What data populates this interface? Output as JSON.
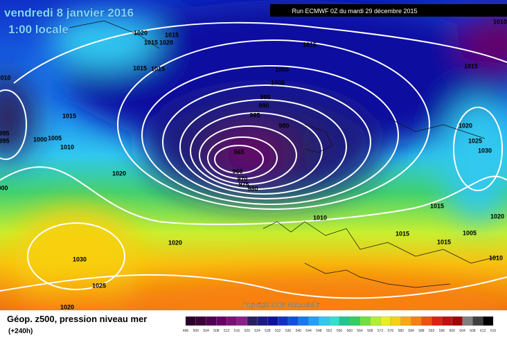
{
  "header": {
    "date": "vendredi 8 janvier 2016",
    "time": "1:00 locale",
    "run": "Run ECMWF 0Z du mardi 29 décembre 2015",
    "copyright": "Copyright 2015 Meteociel.fr"
  },
  "footer": {
    "title": "Géop. z500, pression niveau mer",
    "lead": "(+240h)"
  },
  "isobars": [
    "1020",
    "1015",
    "1015",
    "1020",
    "1015",
    "1015",
    "1015",
    "1010",
    "1015",
    "1005",
    "1000",
    "995",
    "990",
    "985",
    "980",
    "965",
    "960",
    "970",
    "975",
    "980",
    "010",
    "1015",
    "1005",
    "1010",
    "1000",
    "995",
    "995",
    "000",
    "1020",
    "1020",
    "1030",
    "1025",
    "1020",
    "1010",
    "1015",
    "1015",
    "1015",
    "1005",
    "1010",
    "1020",
    "1025",
    "1030",
    "1020"
  ],
  "legend": {
    "values": [
      496,
      500,
      504,
      508,
      512,
      516,
      520,
      524,
      528,
      532,
      536,
      540,
      544,
      548,
      552,
      556,
      560,
      564,
      568,
      572,
      576,
      580,
      584,
      588,
      592,
      596,
      600,
      604,
      608,
      612,
      616
    ],
    "colors": [
      "#2a0028",
      "#3c0038",
      "#500050",
      "#660066",
      "#7a107a",
      "#8c1e8c",
      "#2a2060",
      "#1a1a80",
      "#1010a0",
      "#1030c8",
      "#1050e0",
      "#1878f0",
      "#20a0f8",
      "#30c8f0",
      "#30e0d0",
      "#20c890",
      "#30d060",
      "#70e040",
      "#b0f030",
      "#e8f020",
      "#f8d010",
      "#f8a810",
      "#f88010",
      "#f05010",
      "#e02010",
      "#c01010",
      "#a00808",
      "#808080",
      "#404040",
      "#000000"
    ]
  }
}
